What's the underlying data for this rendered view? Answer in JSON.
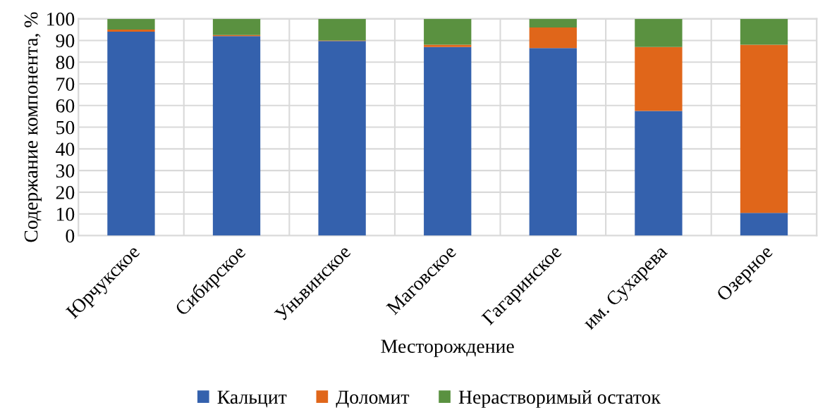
{
  "chart_data": {
    "type": "bar",
    "stacked": true,
    "xlabel": "Месторождение",
    "ylabel": "Содержание компонента, %",
    "categories": [
      "Юрчукское",
      "Сибирское",
      "Уньвинское",
      "Маговское",
      "Гагаринское",
      "им. Сухарева",
      "Озерное"
    ],
    "series": [
      {
        "name": "Кальцит",
        "color": "#3461ad",
        "values": [
          94,
          92,
          89.7,
          87,
          86.5,
          57.5,
          10.5
        ]
      },
      {
        "name": "Доломит",
        "color": "#e0661a",
        "values": [
          1,
          0.5,
          0.3,
          1,
          9.5,
          29.5,
          77.5
        ]
      },
      {
        "name": "Нерастворимый остаток",
        "color": "#5a9140",
        "values": [
          5,
          7.5,
          10,
          12,
          4,
          13,
          12
        ]
      }
    ],
    "ylim": [
      0,
      100
    ],
    "yticks": [
      0,
      10,
      20,
      30,
      40,
      50,
      60,
      70,
      80,
      90,
      100
    ],
    "grid": true,
    "legend": "bottom"
  }
}
